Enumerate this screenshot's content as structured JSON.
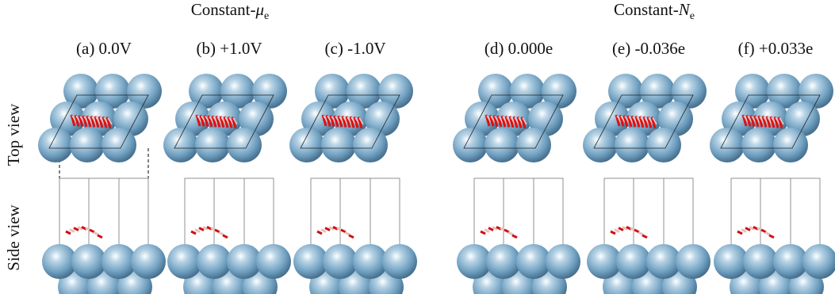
{
  "header": {
    "groups": [
      {
        "prefix": "Constant-",
        "symbol": "μ",
        "subscript": "e"
      },
      {
        "prefix": "Constant-",
        "symbol": "N",
        "subscript": "e"
      }
    ]
  },
  "panels": [
    {
      "label": "(a) 0.0V"
    },
    {
      "label": "(b) +1.0V"
    },
    {
      "label": "(c) -1.0V"
    },
    {
      "label": "(d) 0.000e"
    },
    {
      "label": "(e) -0.036e"
    },
    {
      "label": "(f) +0.033e"
    }
  ],
  "rows": [
    {
      "label": "Top view"
    },
    {
      "label": "Side view"
    }
  ]
}
